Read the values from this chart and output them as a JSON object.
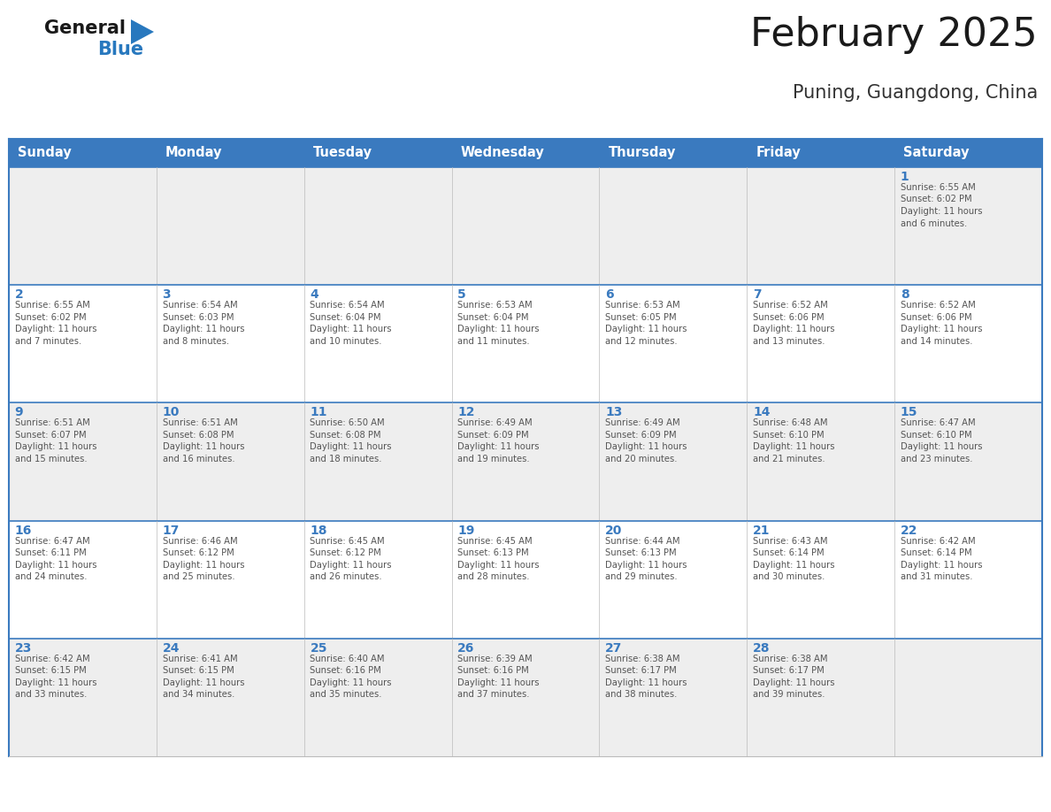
{
  "title": "February 2025",
  "subtitle": "Puning, Guangdong, China",
  "days_of_week": [
    "Sunday",
    "Monday",
    "Tuesday",
    "Wednesday",
    "Thursday",
    "Friday",
    "Saturday"
  ],
  "header_bg": "#3a7abf",
  "header_text": "#ffffff",
  "cell_bg_white": "#ffffff",
  "cell_bg_gray": "#eeeeee",
  "border_color_blue": "#3a7abf",
  "border_color_light": "#bbbbbb",
  "day_num_color": "#3a7abf",
  "info_text_color": "#555555",
  "title_color": "#1a1a1a",
  "subtitle_color": "#333333",
  "logo_general_color": "#1a1a1a",
  "logo_blue_color": "#2878be",
  "calendar_data": [
    [
      {
        "day": null,
        "info": null
      },
      {
        "day": null,
        "info": null
      },
      {
        "day": null,
        "info": null
      },
      {
        "day": null,
        "info": null
      },
      {
        "day": null,
        "info": null
      },
      {
        "day": null,
        "info": null
      },
      {
        "day": 1,
        "info": "Sunrise: 6:55 AM\nSunset: 6:02 PM\nDaylight: 11 hours\nand 6 minutes."
      }
    ],
    [
      {
        "day": 2,
        "info": "Sunrise: 6:55 AM\nSunset: 6:02 PM\nDaylight: 11 hours\nand 7 minutes."
      },
      {
        "day": 3,
        "info": "Sunrise: 6:54 AM\nSunset: 6:03 PM\nDaylight: 11 hours\nand 8 minutes."
      },
      {
        "day": 4,
        "info": "Sunrise: 6:54 AM\nSunset: 6:04 PM\nDaylight: 11 hours\nand 10 minutes."
      },
      {
        "day": 5,
        "info": "Sunrise: 6:53 AM\nSunset: 6:04 PM\nDaylight: 11 hours\nand 11 minutes."
      },
      {
        "day": 6,
        "info": "Sunrise: 6:53 AM\nSunset: 6:05 PM\nDaylight: 11 hours\nand 12 minutes."
      },
      {
        "day": 7,
        "info": "Sunrise: 6:52 AM\nSunset: 6:06 PM\nDaylight: 11 hours\nand 13 minutes."
      },
      {
        "day": 8,
        "info": "Sunrise: 6:52 AM\nSunset: 6:06 PM\nDaylight: 11 hours\nand 14 minutes."
      }
    ],
    [
      {
        "day": 9,
        "info": "Sunrise: 6:51 AM\nSunset: 6:07 PM\nDaylight: 11 hours\nand 15 minutes."
      },
      {
        "day": 10,
        "info": "Sunrise: 6:51 AM\nSunset: 6:08 PM\nDaylight: 11 hours\nand 16 minutes."
      },
      {
        "day": 11,
        "info": "Sunrise: 6:50 AM\nSunset: 6:08 PM\nDaylight: 11 hours\nand 18 minutes."
      },
      {
        "day": 12,
        "info": "Sunrise: 6:49 AM\nSunset: 6:09 PM\nDaylight: 11 hours\nand 19 minutes."
      },
      {
        "day": 13,
        "info": "Sunrise: 6:49 AM\nSunset: 6:09 PM\nDaylight: 11 hours\nand 20 minutes."
      },
      {
        "day": 14,
        "info": "Sunrise: 6:48 AM\nSunset: 6:10 PM\nDaylight: 11 hours\nand 21 minutes."
      },
      {
        "day": 15,
        "info": "Sunrise: 6:47 AM\nSunset: 6:10 PM\nDaylight: 11 hours\nand 23 minutes."
      }
    ],
    [
      {
        "day": 16,
        "info": "Sunrise: 6:47 AM\nSunset: 6:11 PM\nDaylight: 11 hours\nand 24 minutes."
      },
      {
        "day": 17,
        "info": "Sunrise: 6:46 AM\nSunset: 6:12 PM\nDaylight: 11 hours\nand 25 minutes."
      },
      {
        "day": 18,
        "info": "Sunrise: 6:45 AM\nSunset: 6:12 PM\nDaylight: 11 hours\nand 26 minutes."
      },
      {
        "day": 19,
        "info": "Sunrise: 6:45 AM\nSunset: 6:13 PM\nDaylight: 11 hours\nand 28 minutes."
      },
      {
        "day": 20,
        "info": "Sunrise: 6:44 AM\nSunset: 6:13 PM\nDaylight: 11 hours\nand 29 minutes."
      },
      {
        "day": 21,
        "info": "Sunrise: 6:43 AM\nSunset: 6:14 PM\nDaylight: 11 hours\nand 30 minutes."
      },
      {
        "day": 22,
        "info": "Sunrise: 6:42 AM\nSunset: 6:14 PM\nDaylight: 11 hours\nand 31 minutes."
      }
    ],
    [
      {
        "day": 23,
        "info": "Sunrise: 6:42 AM\nSunset: 6:15 PM\nDaylight: 11 hours\nand 33 minutes."
      },
      {
        "day": 24,
        "info": "Sunrise: 6:41 AM\nSunset: 6:15 PM\nDaylight: 11 hours\nand 34 minutes."
      },
      {
        "day": 25,
        "info": "Sunrise: 6:40 AM\nSunset: 6:16 PM\nDaylight: 11 hours\nand 35 minutes."
      },
      {
        "day": 26,
        "info": "Sunrise: 6:39 AM\nSunset: 6:16 PM\nDaylight: 11 hours\nand 37 minutes."
      },
      {
        "day": 27,
        "info": "Sunrise: 6:38 AM\nSunset: 6:17 PM\nDaylight: 11 hours\nand 38 minutes."
      },
      {
        "day": 28,
        "info": "Sunrise: 6:38 AM\nSunset: 6:17 PM\nDaylight: 11 hours\nand 39 minutes."
      },
      {
        "day": null,
        "info": null
      }
    ]
  ]
}
